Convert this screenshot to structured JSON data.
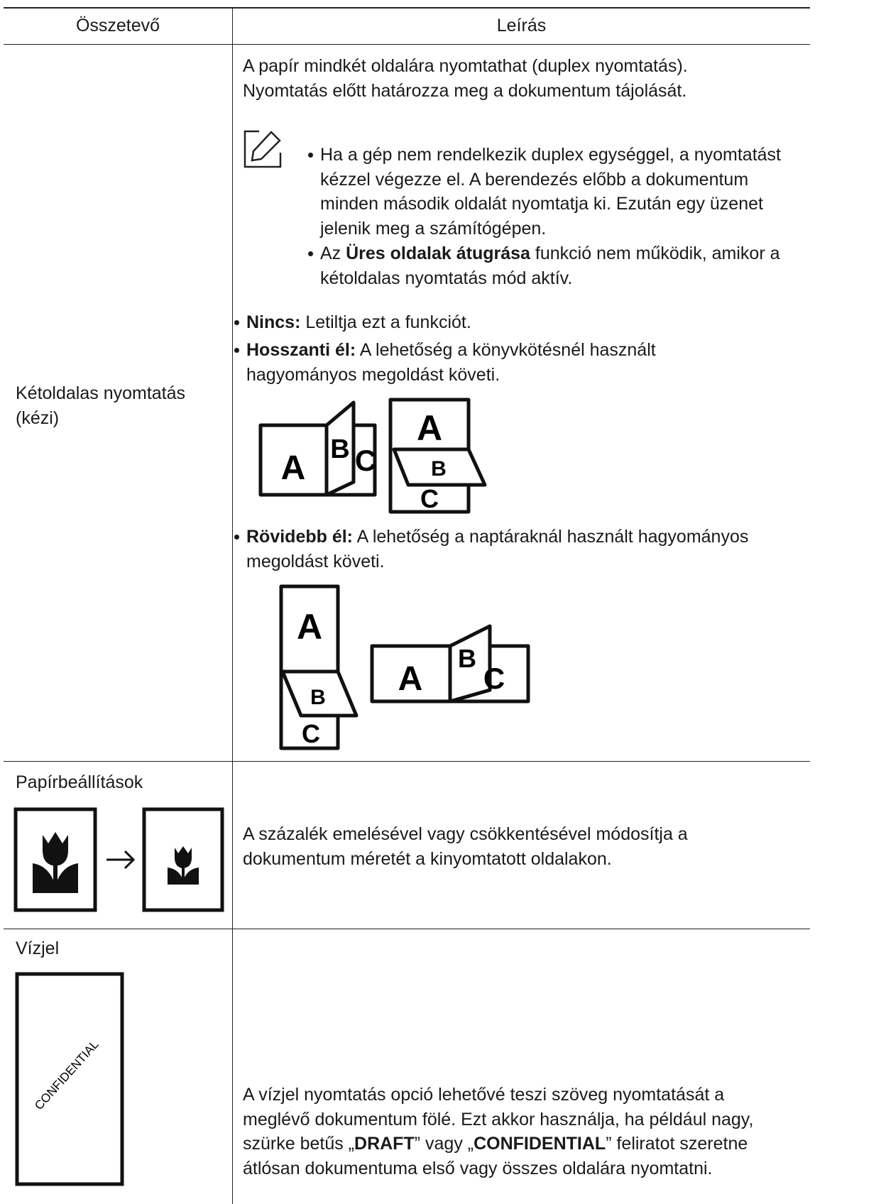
{
  "table": {
    "header": [
      "Összetevő",
      "Leírás"
    ],
    "rows": [
      {
        "component": "Kétoldalas nyomtatás (kézi)",
        "intro": "A papír mindkét oldalára nyomtathat (duplex nyomtatás). Nyomtatás előtt határozza meg a dokumentum tájolását.",
        "notes": [
          [
            "Ha a gép nem rendelkezik duplex egységgel, a nyomtatást kézzel végezze el. A berendezés előbb a dokumentum minden második oldalát nyomtatja ki. Ezután egy üzenet jelenik meg a számítógépen."
          ],
          [
            "Az ",
            "Üres oldalak átugrása",
            " funkció nem működik, amikor a kétoldalas nyomtatás mód aktív."
          ]
        ],
        "options": [
          {
            "term": "Nincs:",
            "text": " Letiltja ezt a funkciót."
          },
          {
            "term": "Hosszanti él:",
            "text": " A lehetőség a könyvkötésnél használt hagyományos megoldást követi.",
            "figure_letters": [
              [
                "A",
                "B",
                "C"
              ],
              [
                "A",
                "B",
                "C"
              ]
            ]
          },
          {
            "term": "Rövidebb él:",
            "text": " A lehetőség a naptáraknál használt hagyományos megoldást követi.",
            "figure_letters": [
              [
                "A",
                "B",
                "C"
              ],
              [
                "A",
                "B",
                "C"
              ]
            ]
          }
        ]
      },
      {
        "component": "Papírbeállítások",
        "description": "A százalék emelésével vagy csökkentésével módosítja a dokumentum méretét a kinyomtatott oldalakon."
      },
      {
        "component": "Vízjel",
        "figure_text": "CONFIDENTIAL",
        "description": [
          "A vízjel nyomtatás opció lehetővé teszi szöveg nyomtatását a meglévő dokumentum fölé. Ezt akkor használja, ha például nagy, szürke betűs „",
          "DRAFT",
          "” vagy „",
          "CONFIDENTIAL",
          "” feliratot szeretne átlósan dokumentuma első vagy összes oldalára nyomtatni."
        ]
      }
    ]
  }
}
